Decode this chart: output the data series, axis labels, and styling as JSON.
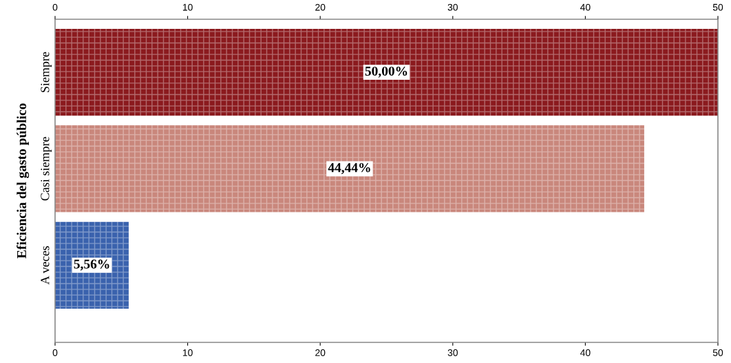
{
  "chart_data": {
    "type": "bar",
    "orientation": "horizontal",
    "ylabel": "Eficiencia del gasto público",
    "categories": [
      "Siempre",
      "Casi siempre",
      "A veces"
    ],
    "values": [
      50.0,
      44.44,
      5.56
    ],
    "colors": [
      "#8b1a1e",
      "#c9877c",
      "#3a62ad"
    ],
    "value_labels": [
      "50,00%",
      "44,44%",
      "5,56%"
    ],
    "xlim": [
      0,
      50
    ],
    "xticks": [
      0,
      10,
      20,
      30,
      40,
      50
    ],
    "x2lim": [
      0,
      50
    ],
    "x2ticks": [
      0,
      10,
      20,
      30,
      40,
      50
    ],
    "grid": false
  }
}
